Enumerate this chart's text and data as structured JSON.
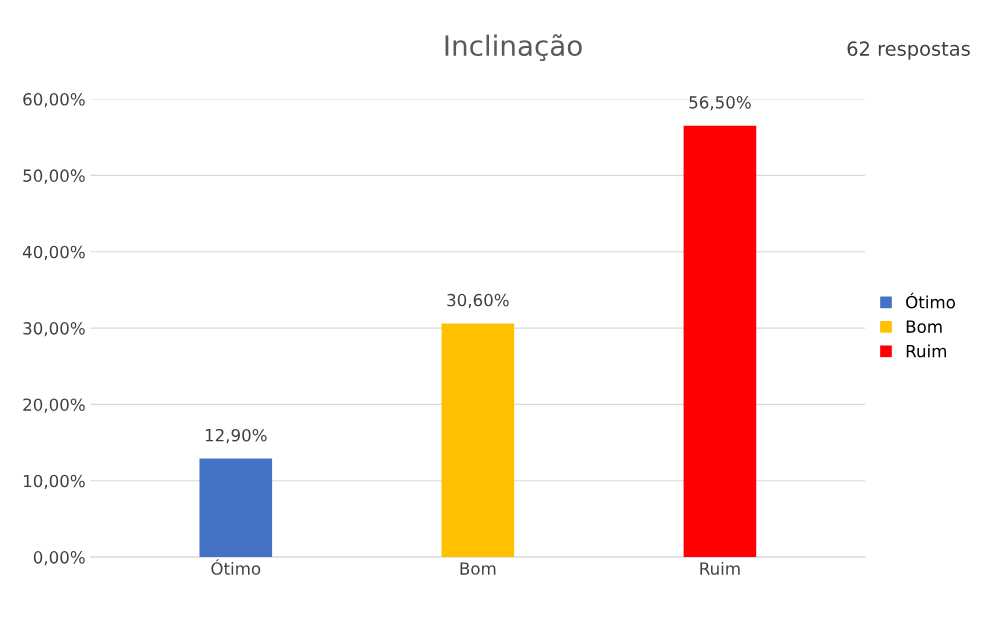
{
  "chart_data": {
    "type": "bar",
    "title": "Inclinação",
    "annotations": [
      "62 respostas"
    ],
    "categories": [
      "Ótimo",
      "Bom",
      "Ruim"
    ],
    "series": [
      {
        "name": "Ótimo",
        "color": "#4472c4",
        "values": [
          12.9,
          null,
          null
        ],
        "value_labels": [
          "12,90%",
          null,
          null
        ]
      },
      {
        "name": "Bom",
        "color": "#ffc000",
        "values": [
          null,
          30.6,
          null
        ],
        "value_labels": [
          null,
          "30,60%",
          null
        ]
      },
      {
        "name": "Ruim",
        "color": "#ff0000",
        "values": [
          null,
          null,
          56.5
        ],
        "value_labels": [
          null,
          null,
          "56,50%"
        ]
      }
    ],
    "ylim": [
      0,
      60
    ],
    "yticks": [
      {
        "value": 0,
        "label": "0,00%"
      },
      {
        "value": 10,
        "label": "10,00%"
      },
      {
        "value": 20,
        "label": "20,00%"
      },
      {
        "value": 30,
        "label": "30,00%"
      },
      {
        "value": 40,
        "label": "40,00%"
      },
      {
        "value": 50,
        "label": "50,00%"
      },
      {
        "value": 60,
        "label": "60,00%"
      }
    ],
    "grid": "y",
    "legend": "right"
  }
}
